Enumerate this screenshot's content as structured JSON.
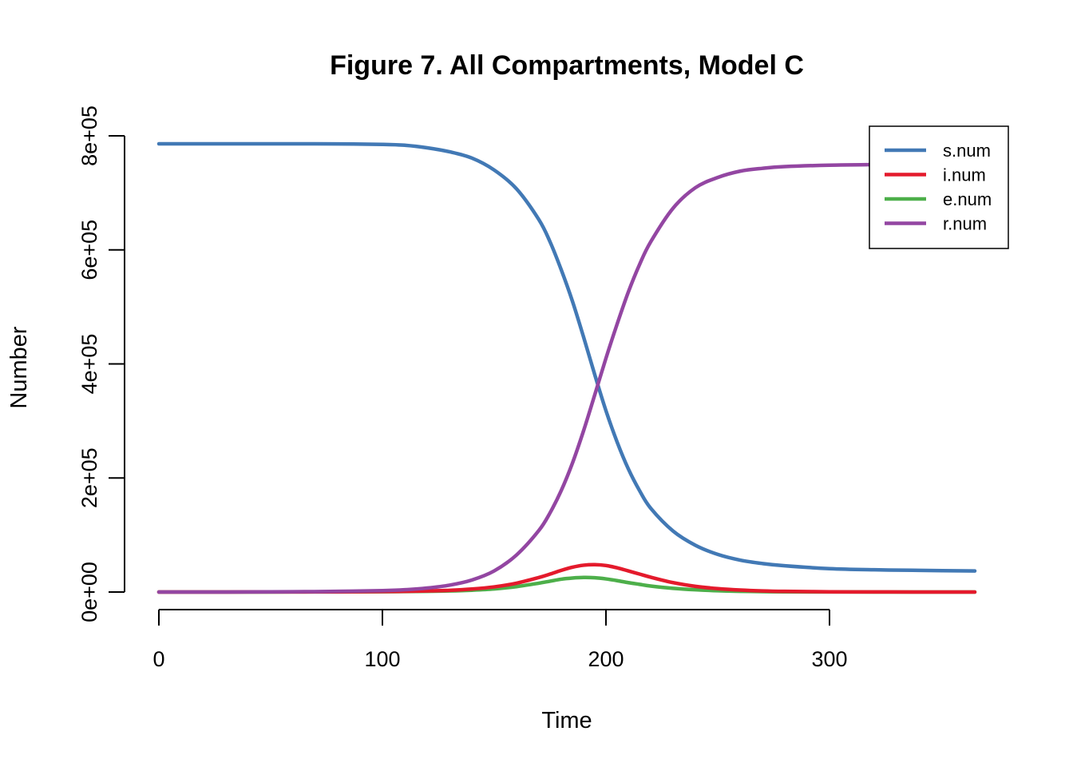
{
  "chart_data": {
    "type": "line",
    "title": "Figure 7. All Compartments, Model C",
    "xlabel": "Time",
    "ylabel": "Number",
    "xlim": [
      0,
      365
    ],
    "ylim": [
      0,
      800000
    ],
    "x_ticks": [
      0,
      100,
      200,
      300
    ],
    "x_tick_labels": [
      "0",
      "100",
      "200",
      "300"
    ],
    "y_ticks": [
      0,
      200000,
      400000,
      600000,
      800000
    ],
    "y_tick_labels": [
      "0e+00",
      "2e+05",
      "4e+05",
      "6e+05",
      "8e+05"
    ],
    "grid": false,
    "legend_position": "top-right",
    "x": [
      0,
      20,
      40,
      60,
      80,
      100,
      110,
      120,
      130,
      140,
      150,
      160,
      170,
      175,
      180,
      185,
      190,
      195,
      200,
      205,
      210,
      215,
      220,
      230,
      240,
      250,
      260,
      270,
      280,
      300,
      320,
      340,
      365
    ],
    "series": [
      {
        "name": "s.num",
        "color": "#4279B5",
        "values": [
          786000,
          786000,
          786000,
          786000,
          785800,
          785000,
          783500,
          779000,
          772000,
          761000,
          740000,
          707000,
          653000,
          614000,
          565000,
          510000,
          447000,
          381000,
          318000,
          263000,
          216000,
          178000,
          147000,
          107000,
          82000,
          66000,
          56000,
          50000,
          46000,
          41000,
          39000,
          38000,
          37000
        ]
      },
      {
        "name": "i.num",
        "color": "#E41A2C",
        "values": [
          0,
          0,
          100,
          200,
          400,
          800,
          1200,
          1900,
          3000,
          5200,
          9000,
          15500,
          25500,
          31500,
          38000,
          43500,
          47000,
          48000,
          46500,
          42500,
          37000,
          31500,
          26000,
          16500,
          10000,
          6000,
          3500,
          2000,
          1200,
          400,
          150,
          50,
          0
        ]
      },
      {
        "name": "e.num",
        "color": "#4DAF4A",
        "values": [
          0,
          0,
          50,
          100,
          250,
          500,
          800,
          1200,
          1900,
          3200,
          5400,
          9500,
          15500,
          19000,
          22500,
          24500,
          25500,
          25000,
          23000,
          20000,
          16500,
          13500,
          10500,
          6500,
          4000,
          2300,
          1300,
          700,
          400,
          150,
          50,
          20,
          0
        ]
      },
      {
        "name": "r.num",
        "color": "#9346A2",
        "values": [
          0,
          0,
          200,
          500,
          1200,
          2500,
          4000,
          7000,
          12000,
          21000,
          37000,
          65000,
          108000,
          139000,
          178000,
          226000,
          283000,
          346000,
          410000,
          470000,
          526000,
          574000,
          614000,
          673000,
          709000,
          727000,
          738000,
          743000,
          746000,
          748500,
          749500,
          750000,
          750000
        ]
      }
    ]
  }
}
